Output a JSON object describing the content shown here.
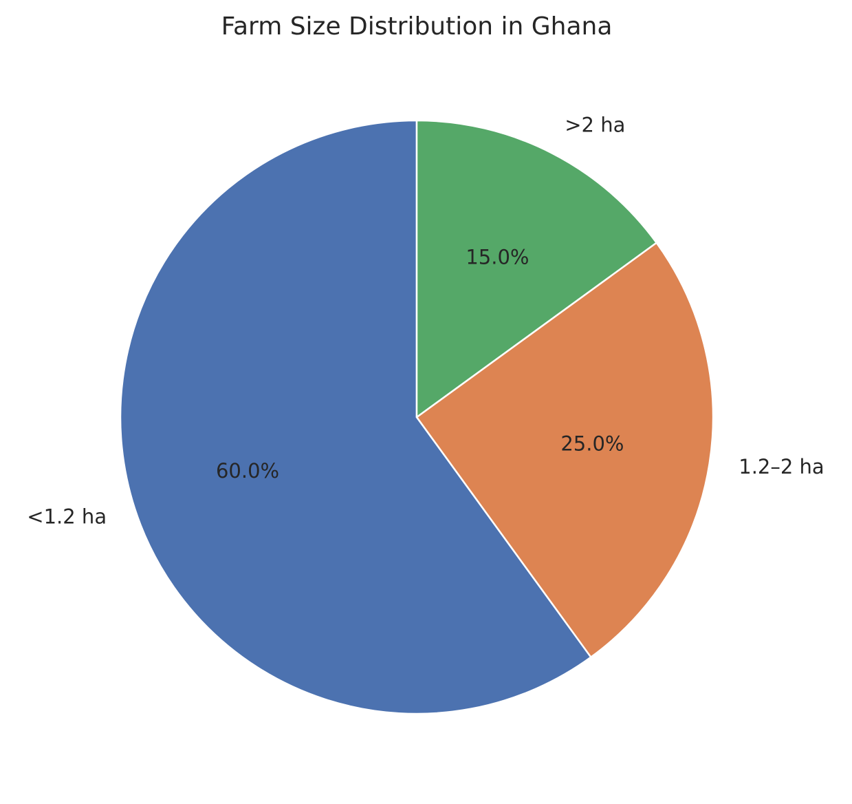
{
  "chart_data": {
    "type": "pie",
    "title": "Farm Size Distribution in Ghana",
    "categories": [
      "<1.2 ha",
      "1.2–2 ha",
      ">2 ha"
    ],
    "values": [
      60.0,
      25.0,
      15.0
    ],
    "value_labels": [
      "60.0%",
      "25.0%",
      "15.0%"
    ],
    "colors": [
      "#4c72b0",
      "#dd8452",
      "#55a868"
    ],
    "start_angle_deg": 90,
    "direction": "counterclockwise",
    "legend": "none"
  }
}
